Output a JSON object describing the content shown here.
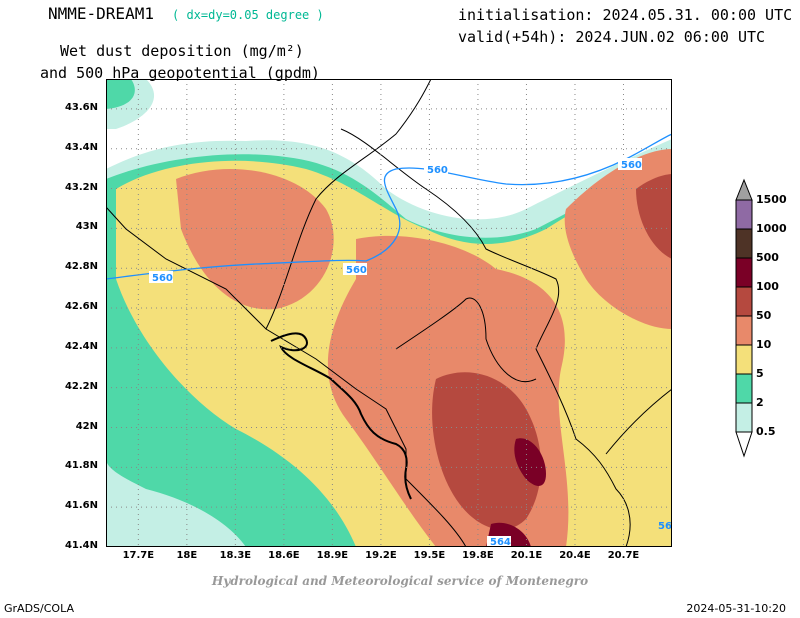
{
  "header": {
    "model_name": "NMME-DREAM1",
    "model_resolution": "( dx=dy=0.05 degree )",
    "initialisation": "initialisation: 2024.05.31. 00:00 UTC",
    "valid": "valid(+54h): 2024.JUN.02 06:00 UTC",
    "title_line1": "Wet dust deposition (mg/m²)",
    "title_line2": "and 500 hPa geopotential (gpdm)"
  },
  "map": {
    "lon_range": [
      17.5,
      21.0
    ],
    "lat_range": [
      41.4,
      43.75
    ],
    "lat_labels": [
      "43.6N",
      "43.4N",
      "43.2N",
      "43N",
      "42.8N",
      "42.6N",
      "42.4N",
      "42.2N",
      "42N",
      "41.8N",
      "41.6N",
      "41.4N"
    ],
    "lat_values": [
      43.6,
      43.4,
      43.2,
      43.0,
      42.8,
      42.6,
      42.4,
      42.2,
      42.0,
      41.8,
      41.6,
      41.4
    ],
    "lon_labels": [
      "17.7E",
      "18E",
      "18.3E",
      "18.6E",
      "18.9E",
      "19.2E",
      "19.5E",
      "19.8E",
      "20.1E",
      "20.4E",
      "20.7E"
    ],
    "lon_values": [
      17.7,
      18.0,
      18.3,
      18.6,
      18.9,
      19.2,
      19.5,
      19.8,
      20.1,
      20.4,
      20.7
    ],
    "contour_labels": [
      "560",
      "560",
      "560",
      "560",
      "564",
      "56"
    ],
    "grid": true
  },
  "legend": {
    "labels": [
      "1500",
      "1000",
      "500",
      "100",
      "50",
      "10",
      "5",
      "2",
      "0.5"
    ],
    "colors": [
      "#8f6aa4",
      "#4e3326",
      "#7a0026",
      "#b5493f",
      "#e8896a",
      "#f4e07a",
      "#4fd8a8",
      "#c4efe5"
    ]
  },
  "footer": {
    "credit": "Hydrological and Meteorological service of Montenegro",
    "software": "GrADS/COLA",
    "timestamp": "2024-05-31-10:20"
  }
}
